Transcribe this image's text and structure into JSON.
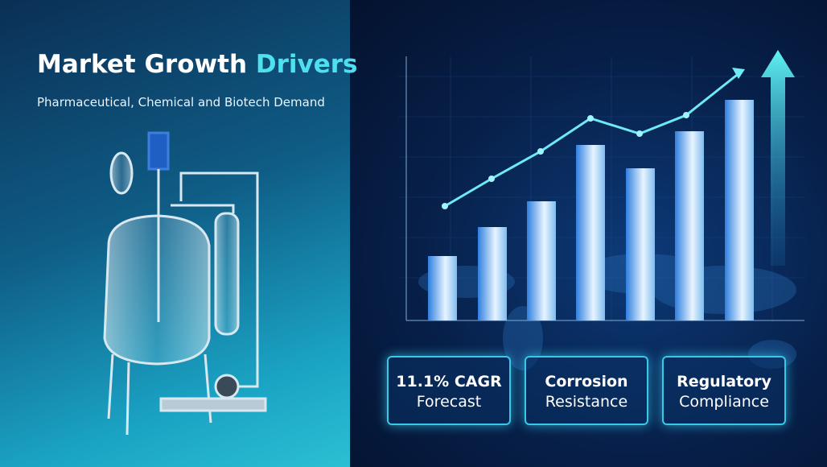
{
  "header": {
    "title_main": "Market Growth",
    "title_highlight": "Drivers",
    "subtitle": "Pharmaceutical, Chemical and Biotech Demand"
  },
  "cards": [
    {
      "line1": "11.1% CAGR",
      "line2": "Forecast"
    },
    {
      "line1": "Corrosion",
      "line2": "Resistance"
    },
    {
      "line1": "Regulatory",
      "line2": "Compliance"
    }
  ]
}
